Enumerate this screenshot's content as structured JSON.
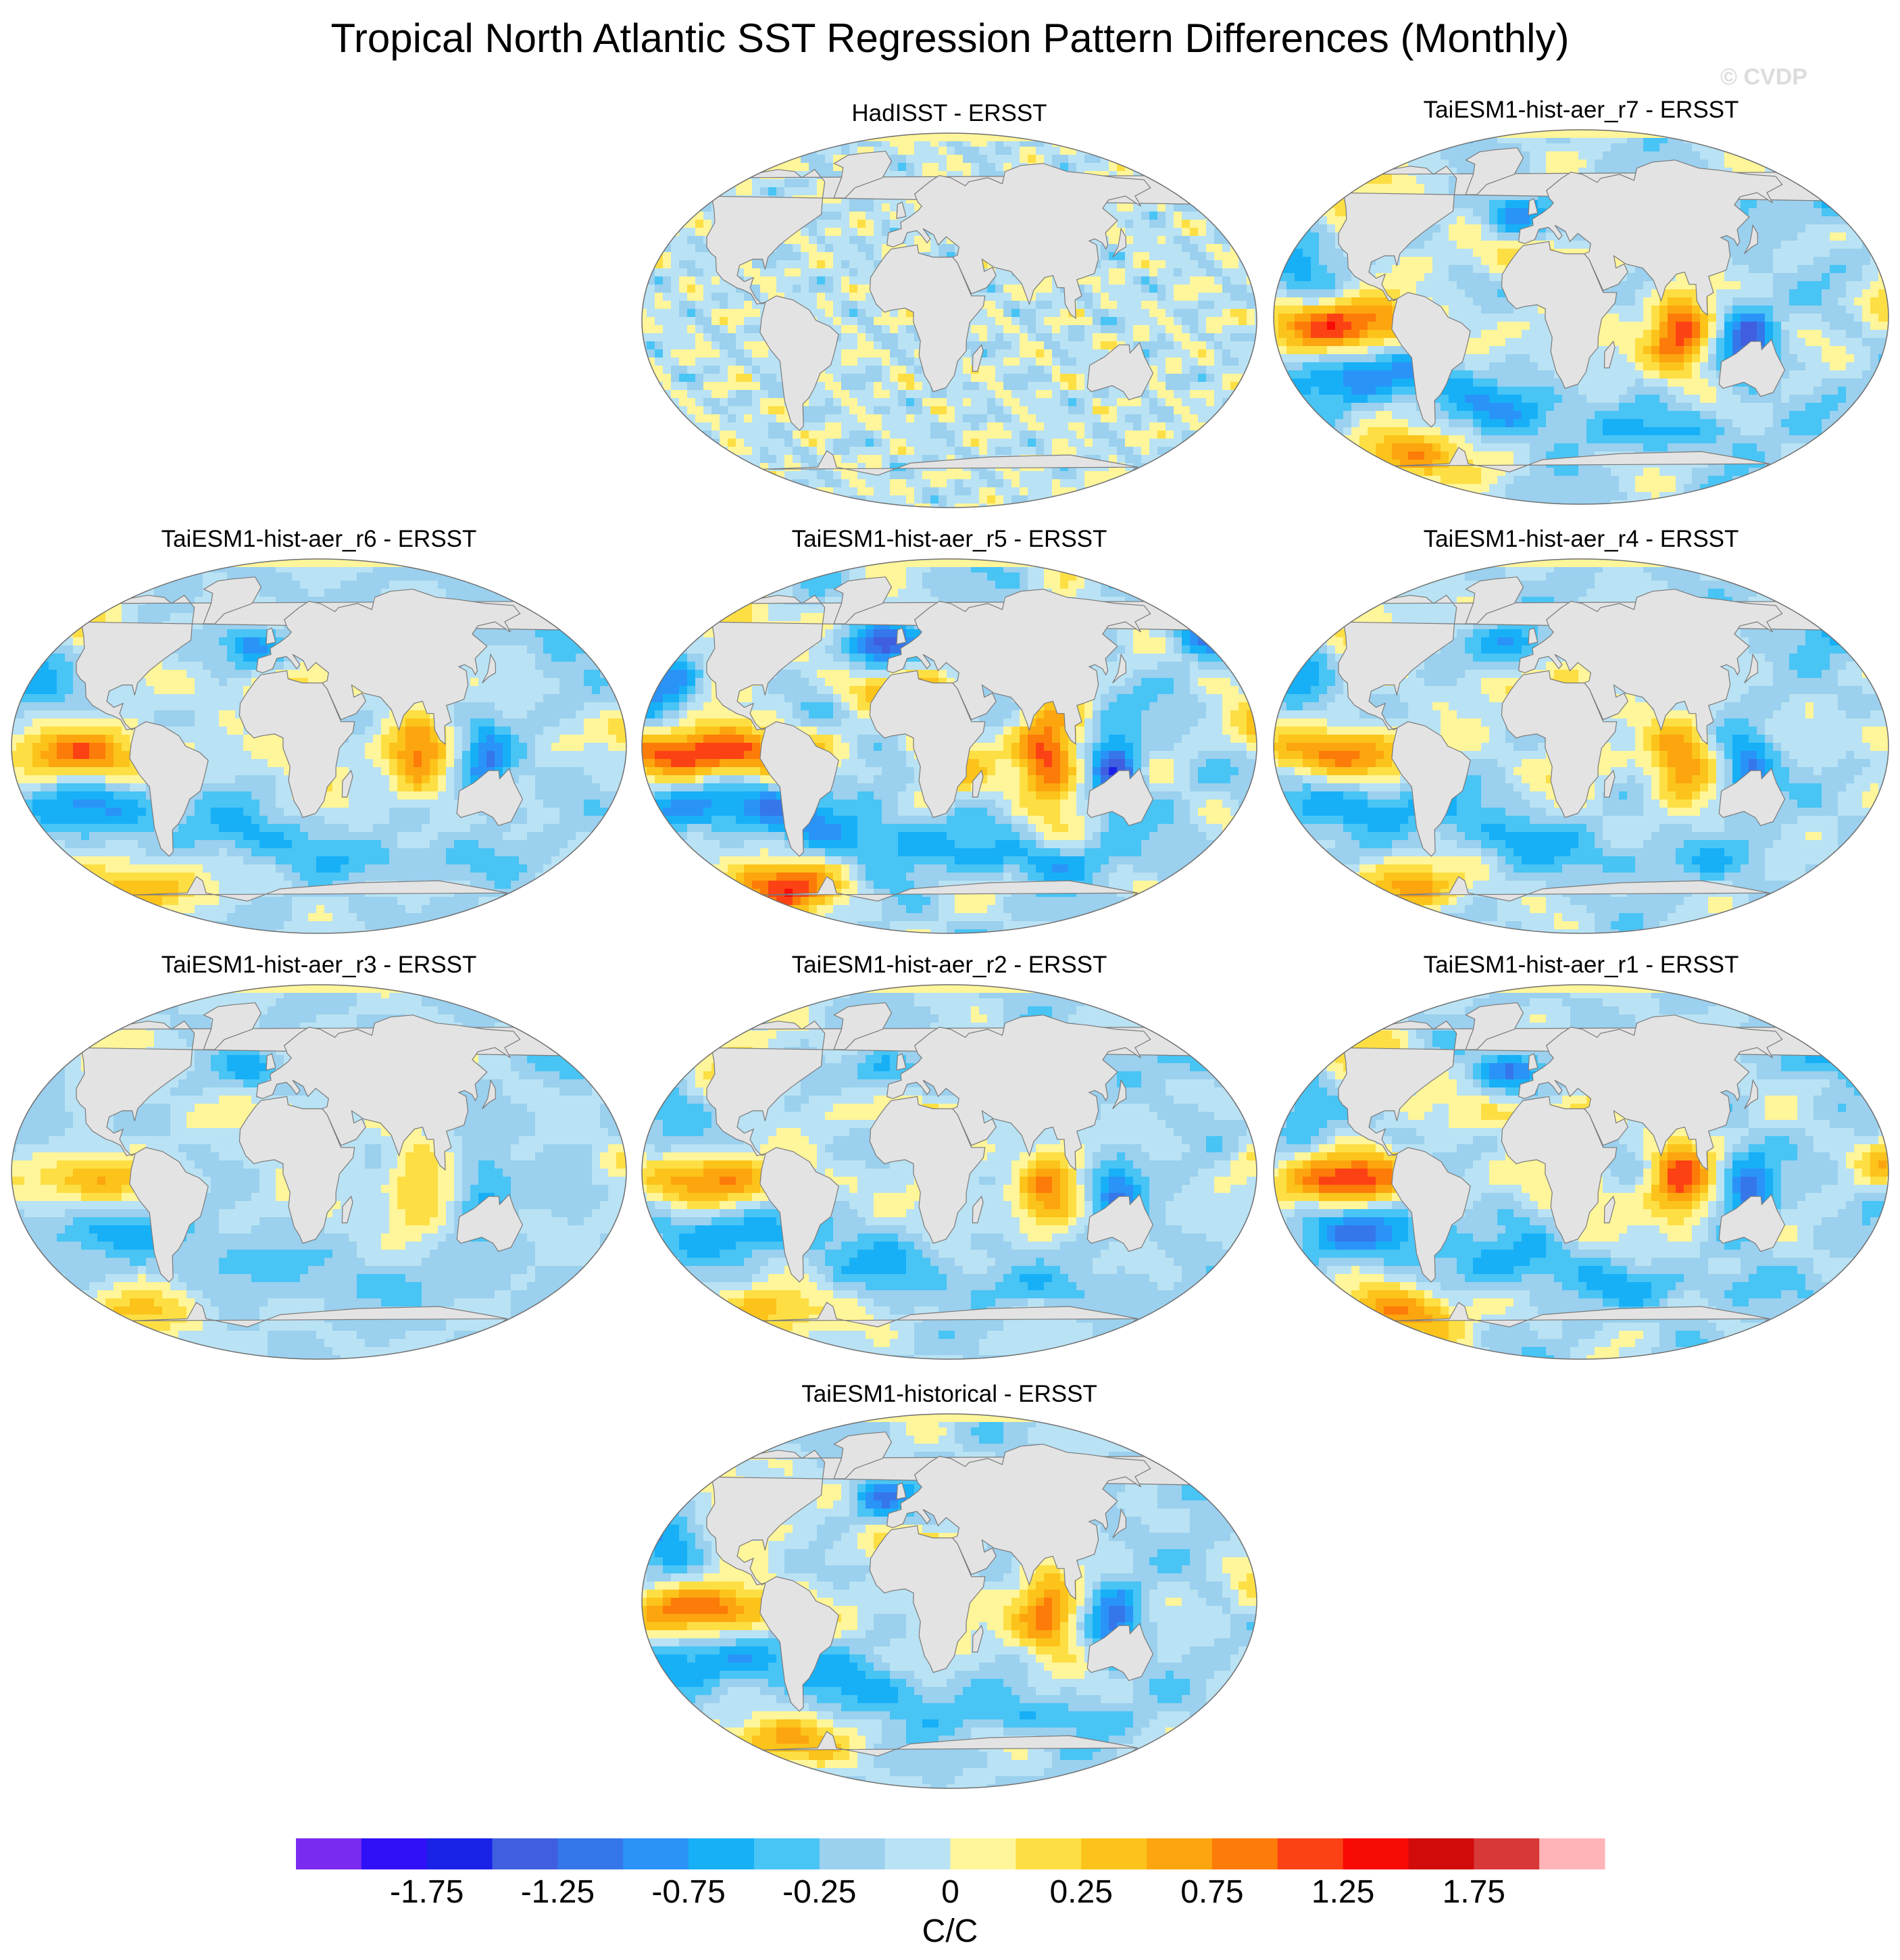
{
  "figure": {
    "title": "Tropical North Atlantic SST Regression Pattern Differences (Monthly)",
    "watermark": "© CVDP",
    "land_color": "#e3e3e3",
    "coast_color": "#7a7a7a"
  },
  "chart_data": [
    {
      "type": "heatmap",
      "title": "HadISST - ERSST",
      "pattern": "noise",
      "amplitude": 0.45
    },
    {
      "type": "heatmap",
      "title": "TaiESM1-hist-aer_r7 - ERSST",
      "pattern": "model",
      "amplitude": 1.6
    },
    {
      "type": "heatmap",
      "title": "TaiESM1-hist-aer_r6 - ERSST",
      "pattern": "model",
      "amplitude": 1.3
    },
    {
      "type": "heatmap",
      "title": "TaiESM1-hist-aer_r5 - ERSST",
      "pattern": "model",
      "amplitude": 1.95
    },
    {
      "type": "heatmap",
      "title": "TaiESM1-hist-aer_r4 - ERSST",
      "pattern": "model",
      "amplitude": 1.35
    },
    {
      "type": "heatmap",
      "title": "TaiESM1-hist-aer_r3 - ERSST",
      "pattern": "model",
      "amplitude": 0.95
    },
    {
      "type": "heatmap",
      "title": "TaiESM1-hist-aer_r2 - ERSST",
      "pattern": "model",
      "amplitude": 1.2
    },
    {
      "type": "heatmap",
      "title": "TaiESM1-hist-aer_r1 - ERSST",
      "pattern": "model",
      "amplitude": 1.55
    },
    {
      "type": "heatmap",
      "title": "TaiESM1-historical - ERSST",
      "pattern": "model",
      "amplitude": 1.45
    }
  ],
  "colorbar": {
    "label": "C/C",
    "levels": [
      -2.0,
      -1.75,
      -1.5,
      -1.25,
      -1.0,
      -0.75,
      -0.5,
      -0.25,
      0,
      0.25,
      0.5,
      0.75,
      1.0,
      1.25,
      1.5,
      1.75,
      2.0
    ],
    "colors": [
      "#7b2bf0",
      "#3010f6",
      "#1a22e8",
      "#3f5fe0",
      "#3577eb",
      "#2a93f8",
      "#17b0f7",
      "#48c4f5",
      "#9bd0ee",
      "#b9e2f4",
      "#fff59a",
      "#fddf44",
      "#fcc31a",
      "#fca50f",
      "#fd7b08",
      "#fc4214",
      "#f80a06",
      "#d10a0a",
      "#d83838",
      "#ffb4b8"
    ],
    "tick_labels": [
      "-1.75",
      "-1.25",
      "-0.75",
      "-0.25",
      "0",
      "0.25",
      "0.75",
      "1.25",
      "1.75"
    ]
  }
}
